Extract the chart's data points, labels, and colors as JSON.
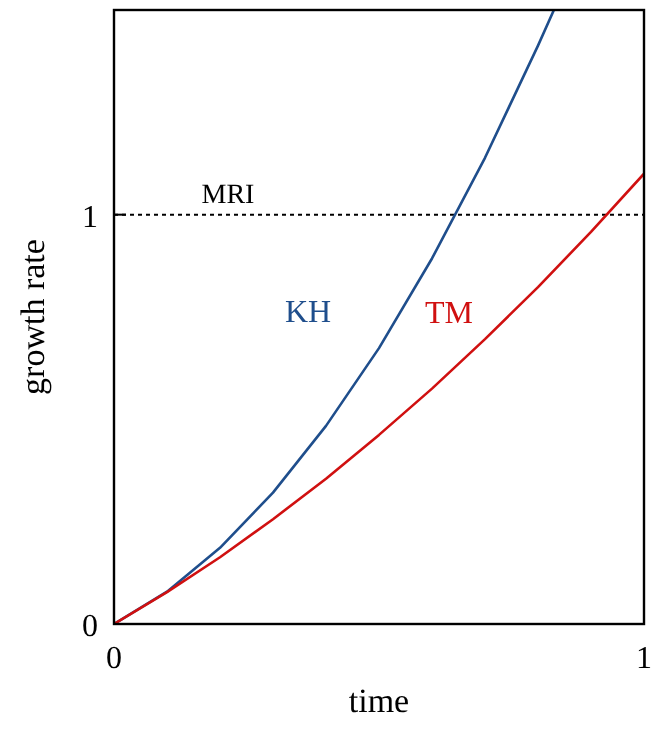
{
  "chart_data": {
    "type": "line",
    "xlabel": "time",
    "ylabel": "growth rate",
    "xlim": [
      0,
      1
    ],
    "ylim": [
      0,
      1.5
    ],
    "xticks": [
      0,
      1
    ],
    "yticks": [
      0,
      1
    ],
    "grid": false,
    "marker": "none",
    "line_style": "solid",
    "series": [
      {
        "name": "KH",
        "color": "#1f4e8c",
        "x": [
          0,
          0.1,
          0.2,
          0.3,
          0.4,
          0.5,
          0.6,
          0.7,
          0.8,
          0.83
        ],
        "values": [
          0,
          0.079,
          0.186,
          0.321,
          0.484,
          0.674,
          0.893,
          1.139,
          1.413,
          1.5
        ]
      },
      {
        "name": "TM",
        "color": "#d01010",
        "x": [
          0,
          0.1,
          0.2,
          0.3,
          0.4,
          0.5,
          0.6,
          0.7,
          0.8,
          0.9,
          1
        ],
        "values": [
          0,
          0.078,
          0.163,
          0.256,
          0.355,
          0.462,
          0.575,
          0.696,
          0.823,
          0.958,
          1.1
        ]
      }
    ],
    "ref_lines": [
      {
        "axis": "y",
        "value": 1,
        "label": "MRI",
        "color": "#000000",
        "line_style": "dotted"
      }
    ]
  }
}
